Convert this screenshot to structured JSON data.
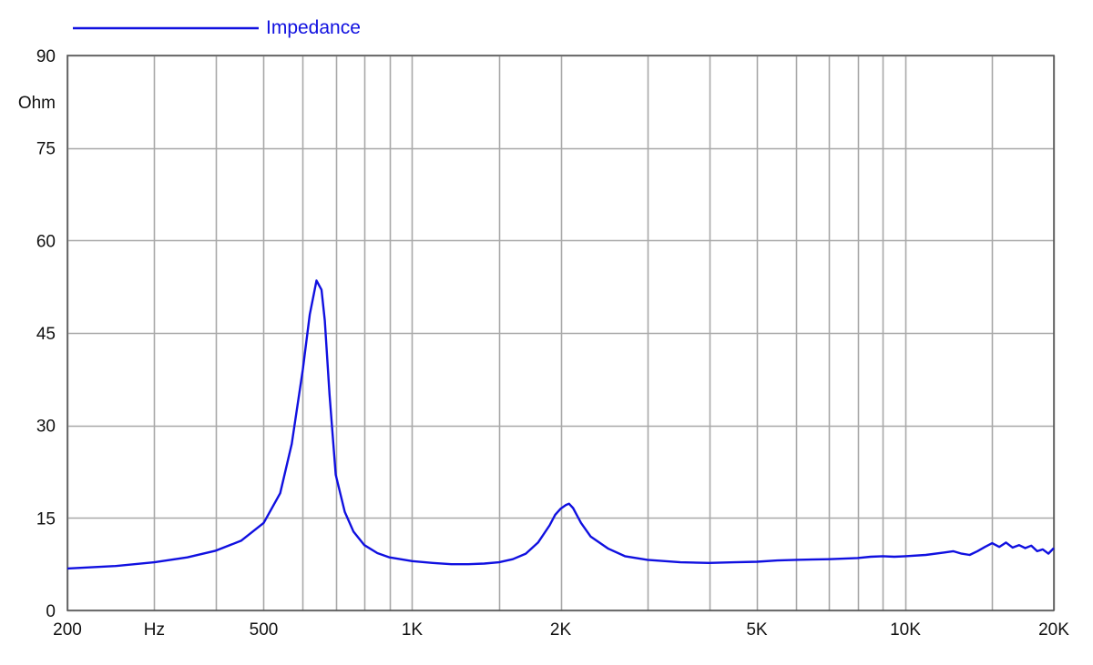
{
  "chart_data": {
    "type": "line",
    "xscale": "log",
    "xlim": [
      200,
      20000
    ],
    "ylim": [
      0,
      90
    ],
    "ylabel": "Ohm",
    "xlabel": "Hz",
    "grid": true,
    "legend_position": "top-left",
    "x_ticks": [
      {
        "value": 200,
        "label": "200"
      },
      {
        "value": 500,
        "label": "500"
      },
      {
        "value": 1000,
        "label": "1K"
      },
      {
        "value": 2000,
        "label": "2K"
      },
      {
        "value": 5000,
        "label": "5K"
      },
      {
        "value": 10000,
        "label": "10K"
      },
      {
        "value": 20000,
        "label": "20K"
      }
    ],
    "x_gridlines": [
      200,
      300,
      400,
      500,
      600,
      700,
      800,
      900,
      1000,
      1500,
      2000,
      3000,
      4000,
      5000,
      6000,
      7000,
      8000,
      9000,
      10000,
      15000,
      20000
    ],
    "y_ticks": [
      {
        "value": 0,
        "label": "0"
      },
      {
        "value": 15,
        "label": "15"
      },
      {
        "value": 30,
        "label": "30"
      },
      {
        "value": 45,
        "label": "45"
      },
      {
        "value": 60,
        "label": "60"
      },
      {
        "value": 75,
        "label": "75"
      },
      {
        "value": 90,
        "label": "90"
      }
    ],
    "colors": {
      "series": "#1010e0",
      "grid": "#a8a8a8",
      "axis": "#555555",
      "text": "#111111"
    },
    "series": [
      {
        "name": "Impedance",
        "x": [
          200,
          250,
          300,
          350,
          400,
          450,
          500,
          540,
          570,
          600,
          620,
          640,
          655,
          665,
          680,
          700,
          730,
          760,
          800,
          850,
          900,
          1000,
          1100,
          1200,
          1300,
          1400,
          1500,
          1600,
          1700,
          1800,
          1900,
          1950,
          2000,
          2050,
          2080,
          2120,
          2200,
          2300,
          2500,
          2700,
          3000,
          3500,
          4000,
          4500,
          5000,
          5500,
          6000,
          7000,
          8000,
          8500,
          9000,
          9500,
          10000,
          11000,
          12000,
          12500,
          13000,
          13500,
          14000,
          14500,
          15000,
          15500,
          16000,
          16500,
          17000,
          17500,
          18000,
          18500,
          19000,
          19500,
          20000
        ],
        "y": [
          6.8,
          7.2,
          7.8,
          8.6,
          9.7,
          11.3,
          14.2,
          19.0,
          27.0,
          39.0,
          48.0,
          53.5,
          52.0,
          47.0,
          35.0,
          22.0,
          16.0,
          12.8,
          10.6,
          9.3,
          8.6,
          8.0,
          7.7,
          7.5,
          7.5,
          7.6,
          7.8,
          8.3,
          9.2,
          11.0,
          13.8,
          15.5,
          16.5,
          17.1,
          17.3,
          16.6,
          14.2,
          12.0,
          10.0,
          8.8,
          8.2,
          7.8,
          7.7,
          7.8,
          7.9,
          8.1,
          8.2,
          8.3,
          8.5,
          8.7,
          8.8,
          8.7,
          8.8,
          9.0,
          9.4,
          9.6,
          9.2,
          9.0,
          9.6,
          10.3,
          10.9,
          10.3,
          11.0,
          10.2,
          10.6,
          10.1,
          10.5,
          9.6,
          9.9,
          9.2,
          10.1
        ]
      }
    ]
  }
}
